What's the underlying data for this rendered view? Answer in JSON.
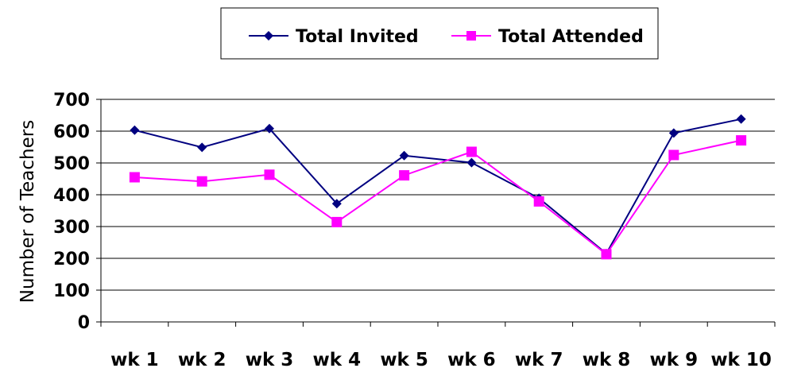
{
  "chart_data": {
    "type": "line",
    "title": "",
    "xlabel": "",
    "ylabel": "Number of Teachers",
    "categories": [
      "wk 1",
      "wk 2",
      "wk 3",
      "wk 4",
      "wk 5",
      "wk 6",
      "wk 7",
      "wk 8",
      "wk 9",
      "wk 10"
    ],
    "ylim": [
      0,
      700
    ],
    "yticks": [
      0,
      100,
      200,
      300,
      400,
      500,
      600,
      700
    ],
    "grid": true,
    "legend_position": "top-center",
    "series": [
      {
        "name": "Total Invited",
        "color": "#000080",
        "marker": "diamond",
        "values": [
          603,
          549,
          608,
          372,
          523,
          501,
          389,
          215,
          594,
          638
        ]
      },
      {
        "name": "Total Attended",
        "color": "#ff00ff",
        "marker": "square",
        "values": [
          455,
          442,
          463,
          314,
          461,
          535,
          379,
          213,
          525,
          571
        ]
      }
    ]
  }
}
